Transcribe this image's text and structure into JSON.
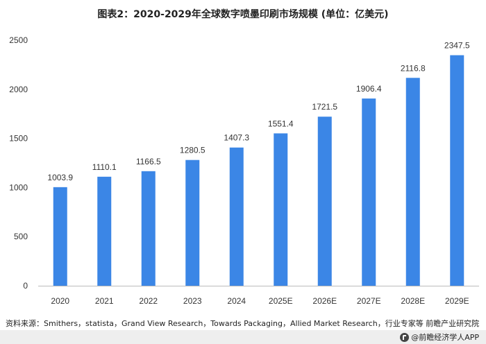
{
  "header": {
    "title": "图表2：2020-2029年全球数字喷墨印刷市场规模 (单位：亿美元)"
  },
  "chart_data": {
    "type": "bar",
    "categories": [
      "2020",
      "2021",
      "2022",
      "2023",
      "2024",
      "2025E",
      "2026E",
      "2027E",
      "2028E",
      "2029E"
    ],
    "values": [
      1003.9,
      1110.1,
      1166.5,
      1280.5,
      1407.3,
      1551.4,
      1721.5,
      1906.4,
      2116.8,
      2347.5
    ],
    "data_labels": [
      "1003.9",
      "1110.1",
      "1166.5",
      "1280.5",
      "1407.3",
      "1551.4",
      "1721.5",
      "1906.4",
      "2116.8",
      "2347.5"
    ],
    "yticks": [
      "0",
      "500",
      "1000",
      "1500",
      "2000",
      "2500"
    ],
    "ylim": [
      0,
      2500
    ],
    "grid": false,
    "bar_color": "#3b86e6"
  },
  "footer": {
    "source": "资料来源：Smithers，statista，Grand View Research，Towards Packaging，Allied Market Research，行业专家等 前瞻产业研究院",
    "brand": "@前瞻经济学人APP"
  }
}
